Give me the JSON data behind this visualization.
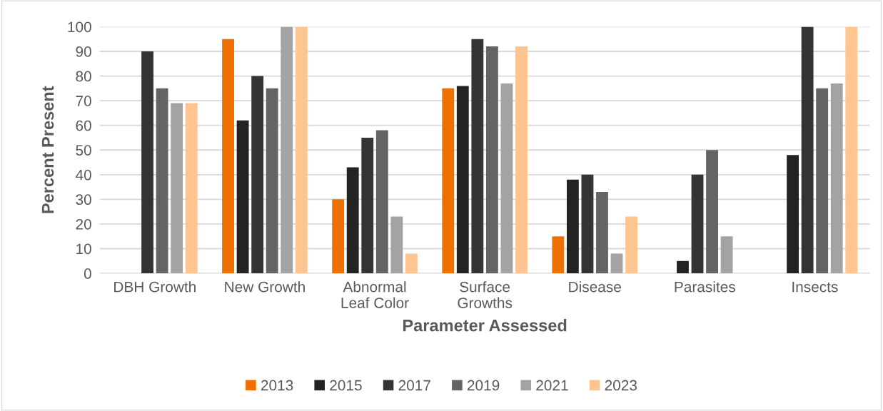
{
  "chart_data": {
    "type": "bar",
    "xlabel": "Parameter Assessed",
    "ylabel": "Percent Present",
    "categories": [
      "DBH Growth",
      "New Growth",
      "Abnormal\nLeaf Color",
      "Surface\nGrowths",
      "Disease",
      "Parasites",
      "Insects"
    ],
    "series": [
      {
        "name": "2013",
        "color": "#ed7000",
        "values": [
          null,
          95,
          30,
          75,
          15,
          null,
          null
        ]
      },
      {
        "name": "2015",
        "color": "#232323",
        "values": [
          null,
          62,
          43,
          76,
          38,
          5,
          48
        ]
      },
      {
        "name": "2017",
        "color": "#343434",
        "values": [
          90,
          80,
          55,
          95,
          40,
          40,
          100
        ]
      },
      {
        "name": "2019",
        "color": "#646464",
        "values": [
          75,
          75,
          58,
          92,
          33,
          50,
          75
        ]
      },
      {
        "name": "2021",
        "color": "#a3a3a3",
        "values": [
          69,
          100,
          23,
          77,
          8,
          15,
          77
        ]
      },
      {
        "name": "2023",
        "color": "#ffc591",
        "values": [
          69,
          100,
          8,
          92,
          23,
          null,
          100
        ]
      }
    ],
    "ylim": [
      0,
      100
    ],
    "yticks": [
      0,
      10,
      20,
      30,
      40,
      50,
      60,
      70,
      80,
      90,
      100
    ],
    "grid": "y",
    "legend": "bottom"
  }
}
